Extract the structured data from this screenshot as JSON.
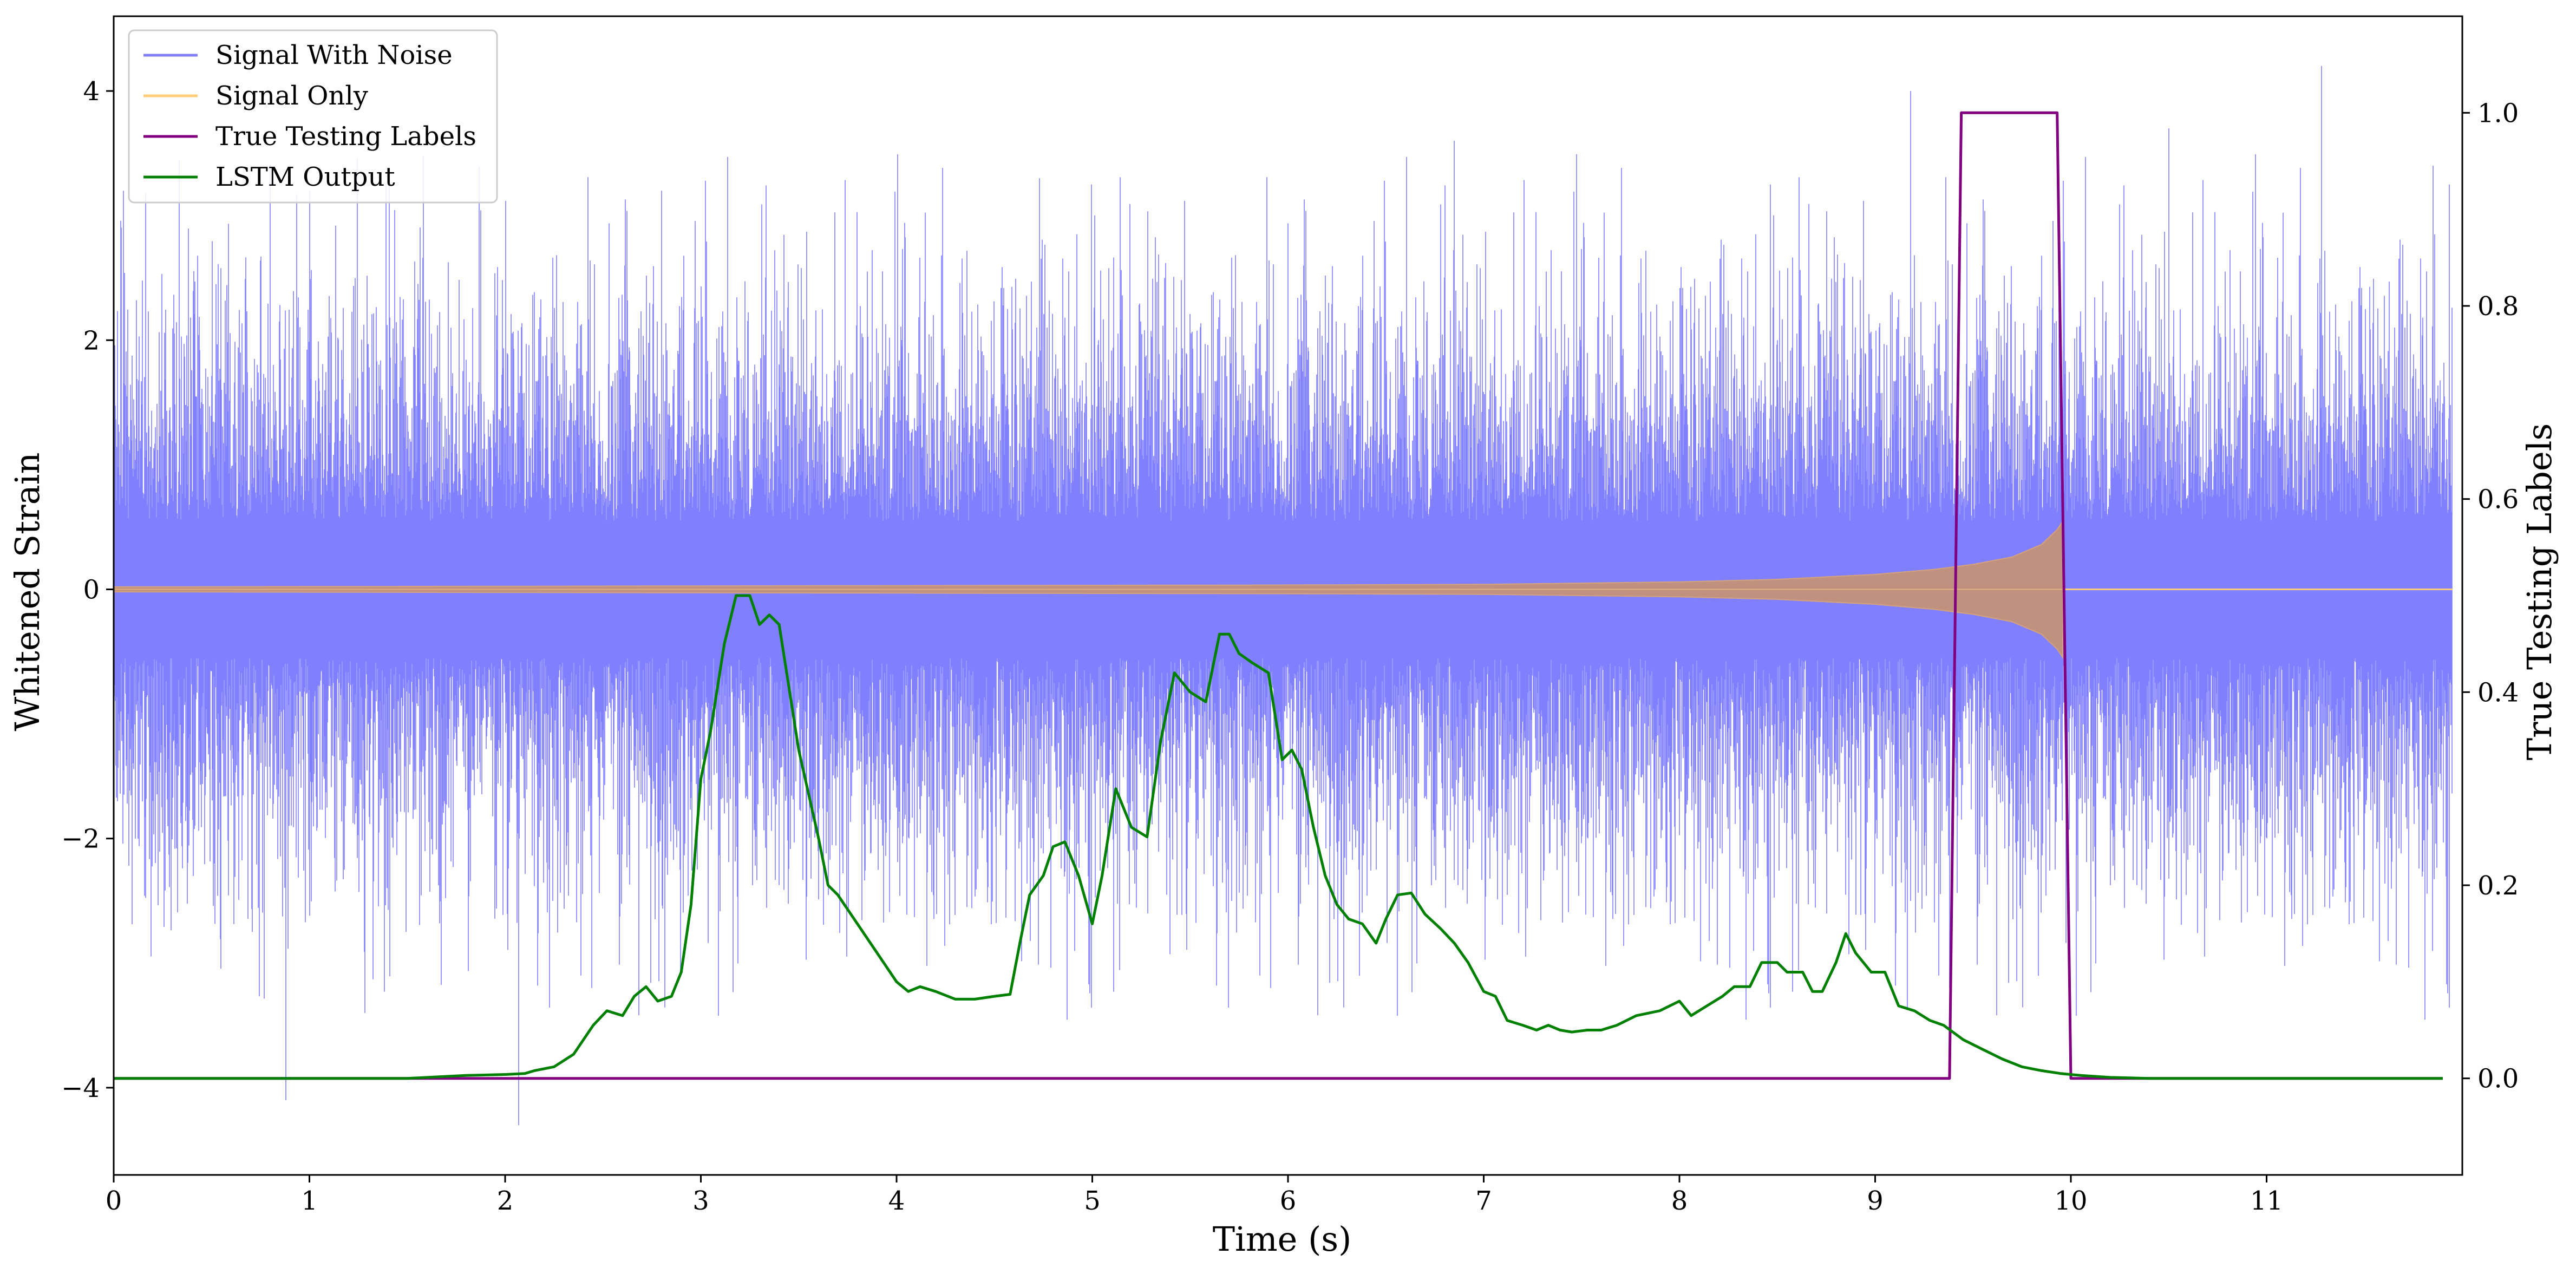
{
  "chart_data": {
    "type": "line",
    "title": "",
    "xlabel": "Time (s)",
    "ylabel": "Whitened Strain",
    "y2label": "True Testing Labels",
    "xlim": [
      0,
      12
    ],
    "ylim": [
      -4.7,
      4.6
    ],
    "y2lim": [
      -0.1,
      1.1
    ],
    "xticks": [
      0,
      1,
      2,
      3,
      4,
      5,
      6,
      7,
      8,
      9,
      10,
      11
    ],
    "xtick_labels": [
      "0",
      "1",
      "2",
      "3",
      "4",
      "5",
      "6",
      "7",
      "8",
      "9",
      "10",
      "11"
    ],
    "yticks": [
      -4,
      -2,
      0,
      2,
      4
    ],
    "ytick_labels": [
      "−4",
      "−2",
      "0",
      "2",
      "4"
    ],
    "y2ticks": [
      0.0,
      0.2,
      0.4,
      0.6,
      0.8,
      1.0
    ],
    "y2tick_labels": [
      "0.0",
      "0.2",
      "0.4",
      "0.6",
      "0.8",
      "1.0"
    ],
    "grid": false,
    "legend_position": "top-left",
    "series": [
      {
        "name": "Signal With Noise",
        "axis": "left",
        "color": "#7f7fff",
        "style": "dense noise, amplitude mostly within ±2 with spikes to about ±4.2",
        "notable_spikes": [
          [
            0.05,
            3.2
          ],
          [
            0.88,
            -4.1
          ],
          [
            1.0,
            3.2
          ],
          [
            2.07,
            -4.3
          ],
          [
            2.8,
            3.2
          ],
          [
            4.73,
            3.3
          ],
          [
            6.85,
            3.6
          ],
          [
            9.18,
            4.0
          ],
          [
            10.5,
            3.7
          ],
          [
            11.28,
            4.2
          ],
          [
            11.85,
            3.4
          ]
        ]
      },
      {
        "name": "Signal Only",
        "axis": "left",
        "color": "#ffcc77",
        "style": "chirp, amplitude grows from ~0.02 to ~0.55 between t=0 and t=9.96, then flat at 0",
        "envelope": {
          "x": [
            0,
            2,
            4,
            6,
            7,
            8,
            8.5,
            9,
            9.3,
            9.5,
            9.7,
            9.85,
            9.93,
            9.96
          ],
          "amp": [
            0.02,
            0.025,
            0.03,
            0.035,
            0.04,
            0.06,
            0.08,
            0.12,
            0.16,
            0.2,
            0.26,
            0.36,
            0.48,
            0.55
          ]
        }
      },
      {
        "name": "True Testing Labels",
        "axis": "right",
        "color": "#800080",
        "x": [
          0,
          9.38,
          9.44,
          9.93,
          10.0,
          11.9
        ],
        "y": [
          0,
          0,
          1,
          1,
          0,
          0
        ]
      },
      {
        "name": "LSTM Output",
        "axis": "right",
        "color": "#008000",
        "x": [
          0,
          1.5,
          1.8,
          2.0,
          2.1,
          2.15,
          2.25,
          2.35,
          2.45,
          2.52,
          2.6,
          2.66,
          2.72,
          2.78,
          2.85,
          2.9,
          2.95,
          3.0,
          3.05,
          3.12,
          3.18,
          3.25,
          3.3,
          3.35,
          3.4,
          3.5,
          3.6,
          3.65,
          3.7,
          3.8,
          3.9,
          4.0,
          4.06,
          4.12,
          4.2,
          4.3,
          4.4,
          4.5,
          4.58,
          4.63,
          4.68,
          4.75,
          4.8,
          4.86,
          4.93,
          5.0,
          5.05,
          5.12,
          5.2,
          5.28,
          5.35,
          5.42,
          5.5,
          5.58,
          5.65,
          5.7,
          5.75,
          5.82,
          5.9,
          5.97,
          6.02,
          6.07,
          6.13,
          6.19,
          6.25,
          6.31,
          6.38,
          6.45,
          6.5,
          6.56,
          6.63,
          6.7,
          6.78,
          6.85,
          6.92,
          7.0,
          7.06,
          7.12,
          7.2,
          7.27,
          7.33,
          7.39,
          7.45,
          7.53,
          7.6,
          7.68,
          7.78,
          7.9,
          8.0,
          8.06,
          8.14,
          8.22,
          8.28,
          8.36,
          8.42,
          8.5,
          8.55,
          8.63,
          8.68,
          8.73,
          8.8,
          8.85,
          8.9,
          8.98,
          9.05,
          9.12,
          9.2,
          9.28,
          9.35,
          9.45,
          9.55,
          9.65,
          9.75,
          9.85,
          9.95,
          10.05,
          10.2,
          10.4,
          10.7,
          11.0,
          11.5,
          11.9
        ],
        "y": [
          0,
          0,
          0.003,
          0.004,
          0.005,
          0.008,
          0.012,
          0.025,
          0.055,
          0.07,
          0.065,
          0.085,
          0.095,
          0.08,
          0.085,
          0.11,
          0.18,
          0.31,
          0.36,
          0.45,
          0.5,
          0.5,
          0.47,
          0.48,
          0.47,
          0.34,
          0.25,
          0.2,
          0.19,
          0.16,
          0.13,
          0.1,
          0.09,
          0.095,
          0.09,
          0.082,
          0.082,
          0.085,
          0.087,
          0.14,
          0.19,
          0.21,
          0.24,
          0.245,
          0.21,
          0.16,
          0.21,
          0.3,
          0.26,
          0.25,
          0.35,
          0.42,
          0.4,
          0.39,
          0.46,
          0.46,
          0.44,
          0.43,
          0.42,
          0.33,
          0.34,
          0.32,
          0.26,
          0.21,
          0.18,
          0.165,
          0.16,
          0.14,
          0.165,
          0.19,
          0.192,
          0.17,
          0.155,
          0.14,
          0.12,
          0.09,
          0.085,
          0.06,
          0.055,
          0.05,
          0.055,
          0.05,
          0.048,
          0.05,
          0.05,
          0.055,
          0.065,
          0.07,
          0.08,
          0.065,
          0.075,
          0.085,
          0.095,
          0.095,
          0.12,
          0.12,
          0.11,
          0.11,
          0.09,
          0.09,
          0.12,
          0.15,
          0.13,
          0.11,
          0.11,
          0.075,
          0.07,
          0.06,
          0.055,
          0.04,
          0.03,
          0.02,
          0.012,
          0.008,
          0.005,
          0.003,
          0.001,
          0,
          0,
          0,
          0,
          0
        ]
      }
    ]
  }
}
